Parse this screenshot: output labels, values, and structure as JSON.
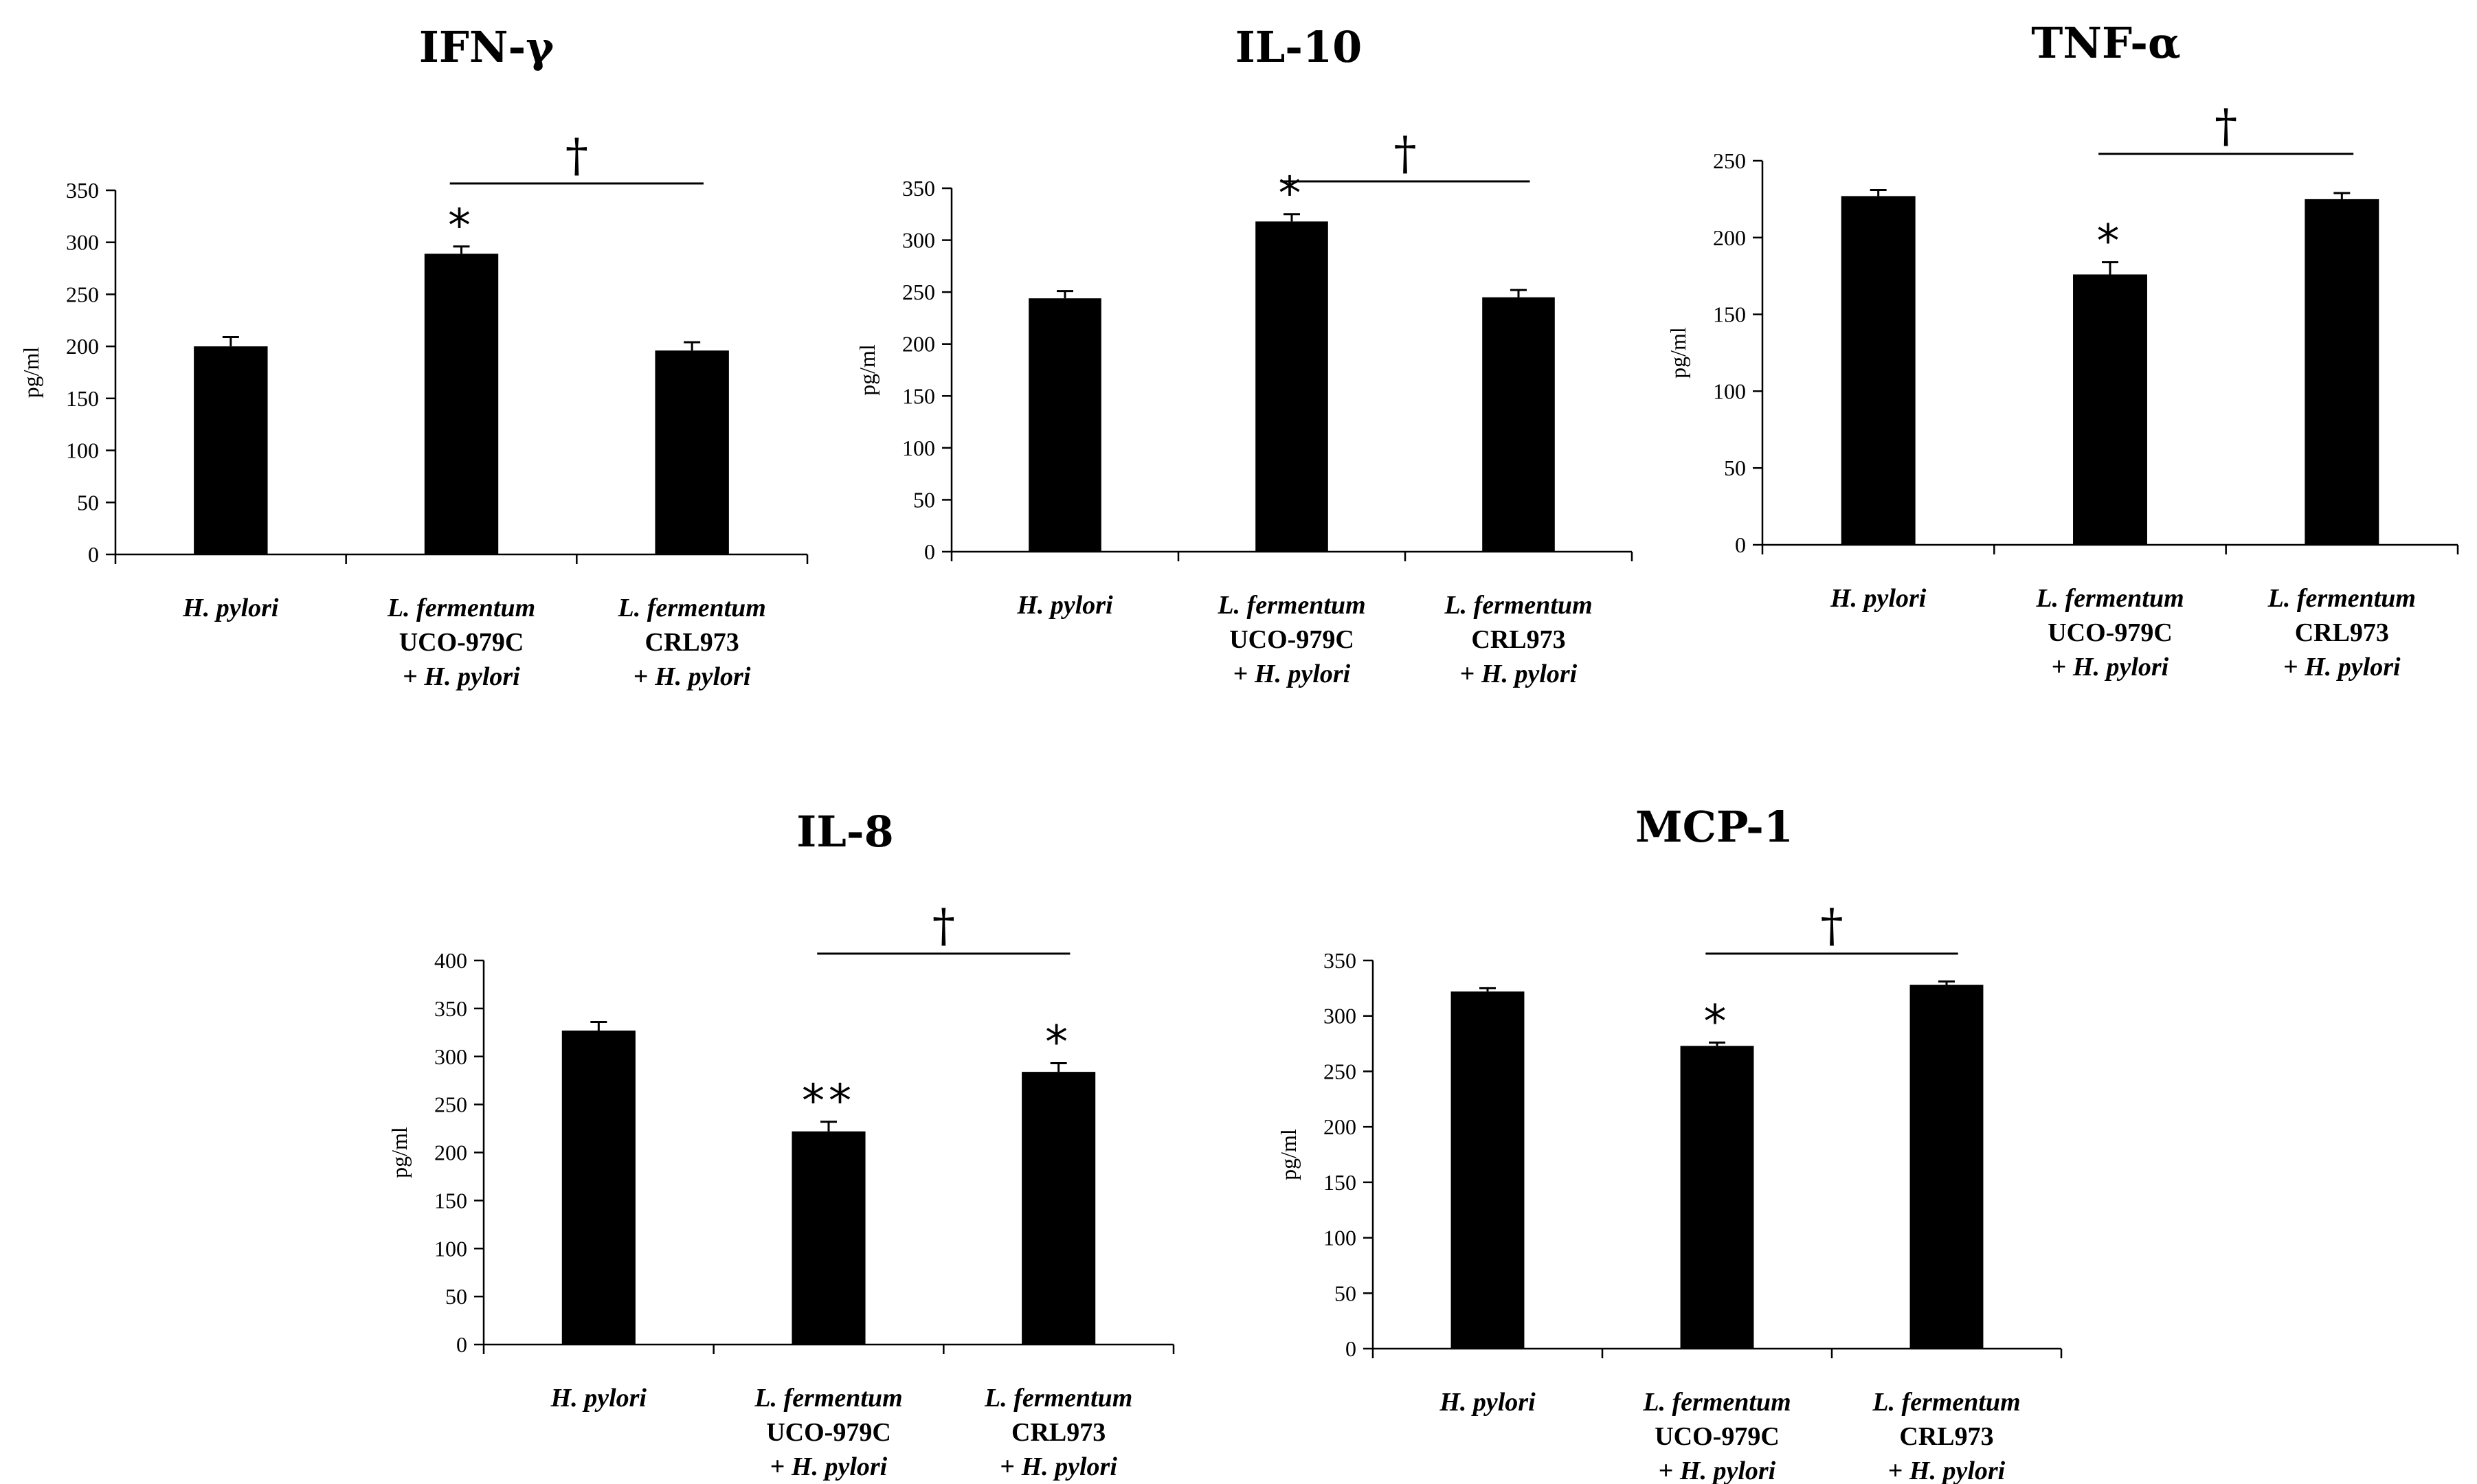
{
  "chart_data": [
    {
      "type": "bar",
      "title": "IFN-γ",
      "ylabel": "pg/ml",
      "xlabel": "",
      "ylim": [
        0,
        350
      ],
      "yticks": [
        0,
        50,
        100,
        150,
        200,
        250,
        300,
        350
      ],
      "categories": [
        [
          "H. pylori"
        ],
        [
          "L. fermentum",
          "UCO-979C",
          "+ H. pylori"
        ],
        [
          "L. fermentum",
          "CRL973",
          "+ H. pylori"
        ]
      ],
      "values": [
        200,
        289,
        196
      ],
      "errors": [
        9,
        7,
        8
      ],
      "annotations": [
        "",
        "*",
        ""
      ],
      "bracket": {
        "from": 1,
        "to": 2,
        "label": "†"
      }
    },
    {
      "type": "bar",
      "title": "IL-10",
      "ylabel": "pg/ml",
      "xlabel": "",
      "ylim": [
        0,
        350
      ],
      "yticks": [
        0,
        50,
        100,
        150,
        200,
        250,
        300,
        350
      ],
      "categories": [
        [
          "H. pylori"
        ],
        [
          "L. fermentum",
          "UCO-979C",
          "+ H. pylori"
        ],
        [
          "L. fermentum",
          "CRL973",
          "+ H. pylori"
        ]
      ],
      "values": [
        244,
        318,
        245
      ],
      "errors": [
        7,
        7,
        7
      ],
      "annotations": [
        "",
        "*",
        ""
      ],
      "bracket": {
        "from": 1,
        "to": 2,
        "label": "†"
      }
    },
    {
      "type": "bar",
      "title": "TNF-α",
      "ylabel": "pg/ml",
      "xlabel": "",
      "ylim": [
        0,
        250
      ],
      "yticks": [
        0,
        50,
        100,
        150,
        200,
        250
      ],
      "categories": [
        [
          "H. pylori"
        ],
        [
          "L. fermentum",
          "UCO-979C",
          "+ H. pylori"
        ],
        [
          "L. fermentum",
          "CRL973",
          "+ H. pylori"
        ]
      ],
      "values": [
        227,
        176,
        225
      ],
      "errors": [
        4,
        8,
        4
      ],
      "annotations": [
        "",
        "*",
        ""
      ],
      "bracket": {
        "from": 1,
        "to": 2,
        "label": "†"
      }
    },
    {
      "type": "bar",
      "title": "IL-8",
      "ylabel": "pg/ml",
      "xlabel": "",
      "ylim": [
        0,
        400
      ],
      "yticks": [
        0,
        50,
        100,
        150,
        200,
        250,
        300,
        350,
        400
      ],
      "categories": [
        [
          "H. pylori"
        ],
        [
          "L. fermentum",
          "UCO-979C",
          "+ H. pylori"
        ],
        [
          "L. fermentum",
          "CRL973",
          "+ H. pylori"
        ]
      ],
      "values": [
        327,
        222,
        284
      ],
      "errors": [
        9,
        10,
        9
      ],
      "annotations": [
        "",
        "**",
        "*"
      ],
      "bracket": {
        "from": 1,
        "to": 2,
        "label": "†"
      }
    },
    {
      "type": "bar",
      "title": "MCP-1",
      "ylabel": "pg/ml",
      "xlabel": "",
      "ylim": [
        0,
        350
      ],
      "yticks": [
        0,
        50,
        100,
        150,
        200,
        250,
        300,
        350
      ],
      "categories": [
        [
          "H. pylori"
        ],
        [
          "L. fermentum",
          "UCO-979C",
          "+ H. pylori"
        ],
        [
          "L. fermentum",
          "CRL973",
          "+ H. pylori"
        ]
      ],
      "values": [
        322,
        273,
        328
      ],
      "errors": [
        3,
        3,
        3
      ],
      "annotations": [
        "",
        "*",
        ""
      ],
      "bracket": {
        "from": 1,
        "to": 2,
        "label": "†"
      }
    }
  ]
}
